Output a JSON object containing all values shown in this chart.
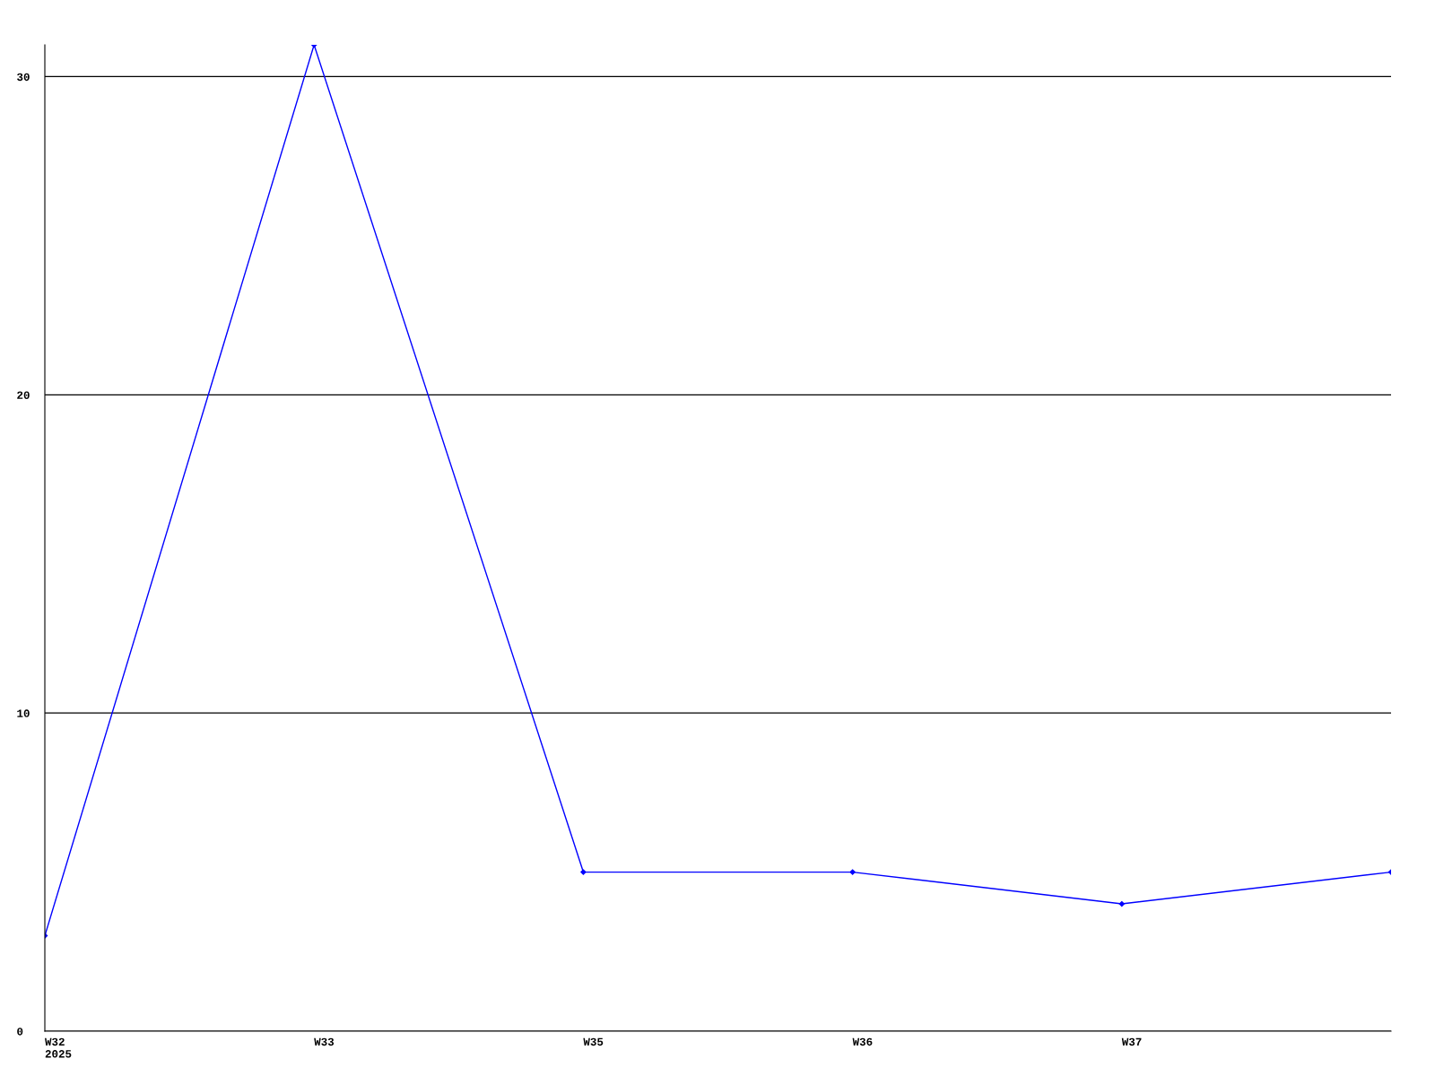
{
  "chart_data": {
    "type": "line",
    "categories": [
      "W32\n2025",
      "W33",
      "W35",
      "W36",
      "W37",
      null
    ],
    "series": [
      {
        "color": "#0000ff",
        "values": [
          3,
          31,
          5,
          5,
          4,
          5
        ]
      }
    ],
    "ylim": [
      0,
      31
    ],
    "yticks": [
      0,
      10,
      20,
      30
    ],
    "grid": "y",
    "marker": "diamond",
    "line_style": "solid",
    "legend": false
  }
}
